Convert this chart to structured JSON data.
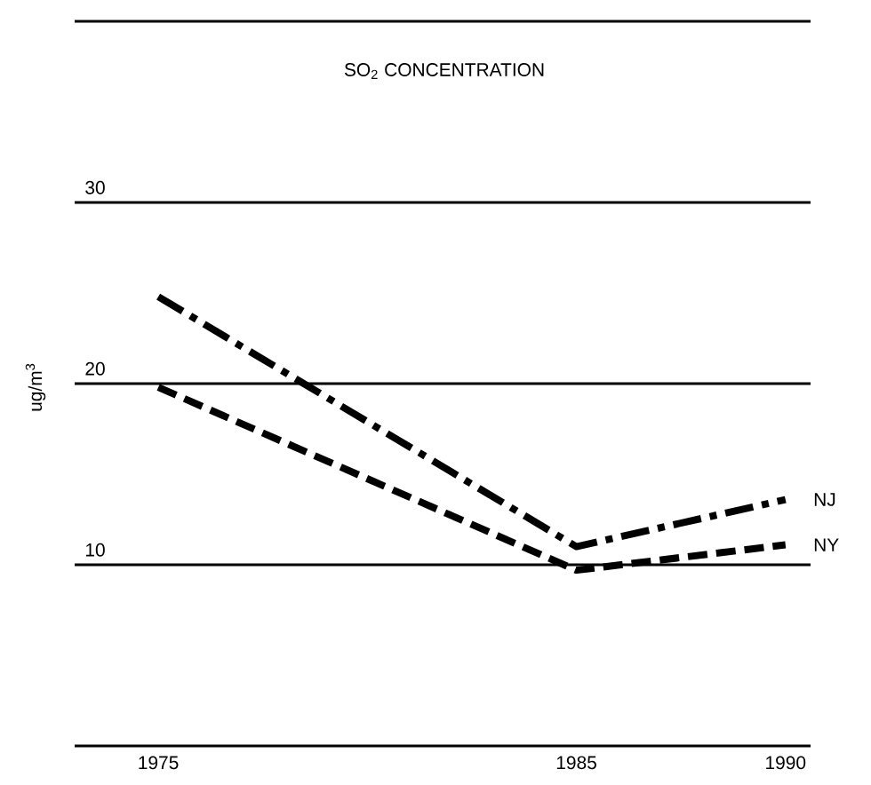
{
  "chart_data": {
    "type": "line",
    "title": "SO$_{2}$ CONCENTRATION",
    "ylabel": "ug/m$^{3}$",
    "x": [
      1975,
      1985,
      1990
    ],
    "series": [
      {
        "name": "NJ",
        "color": "#000000",
        "line_style": "dashdot",
        "values": [
          24.8,
          11,
          13.6
        ]
      },
      {
        "name": "NY",
        "color": "#000000",
        "line_style": "dashed",
        "values": [
          19.8,
          9.7,
          11.1
        ]
      }
    ],
    "xlim": [
      1973,
      1990.6
    ],
    "ylim": [
      0,
      40
    ],
    "xticks": [
      1975,
      1985,
      1990
    ],
    "yticks": [
      {
        "value": 0,
        "label": null
      },
      10,
      20,
      30,
      {
        "value": 40,
        "label": null
      }
    ],
    "grid": "y",
    "marker": "none"
  }
}
